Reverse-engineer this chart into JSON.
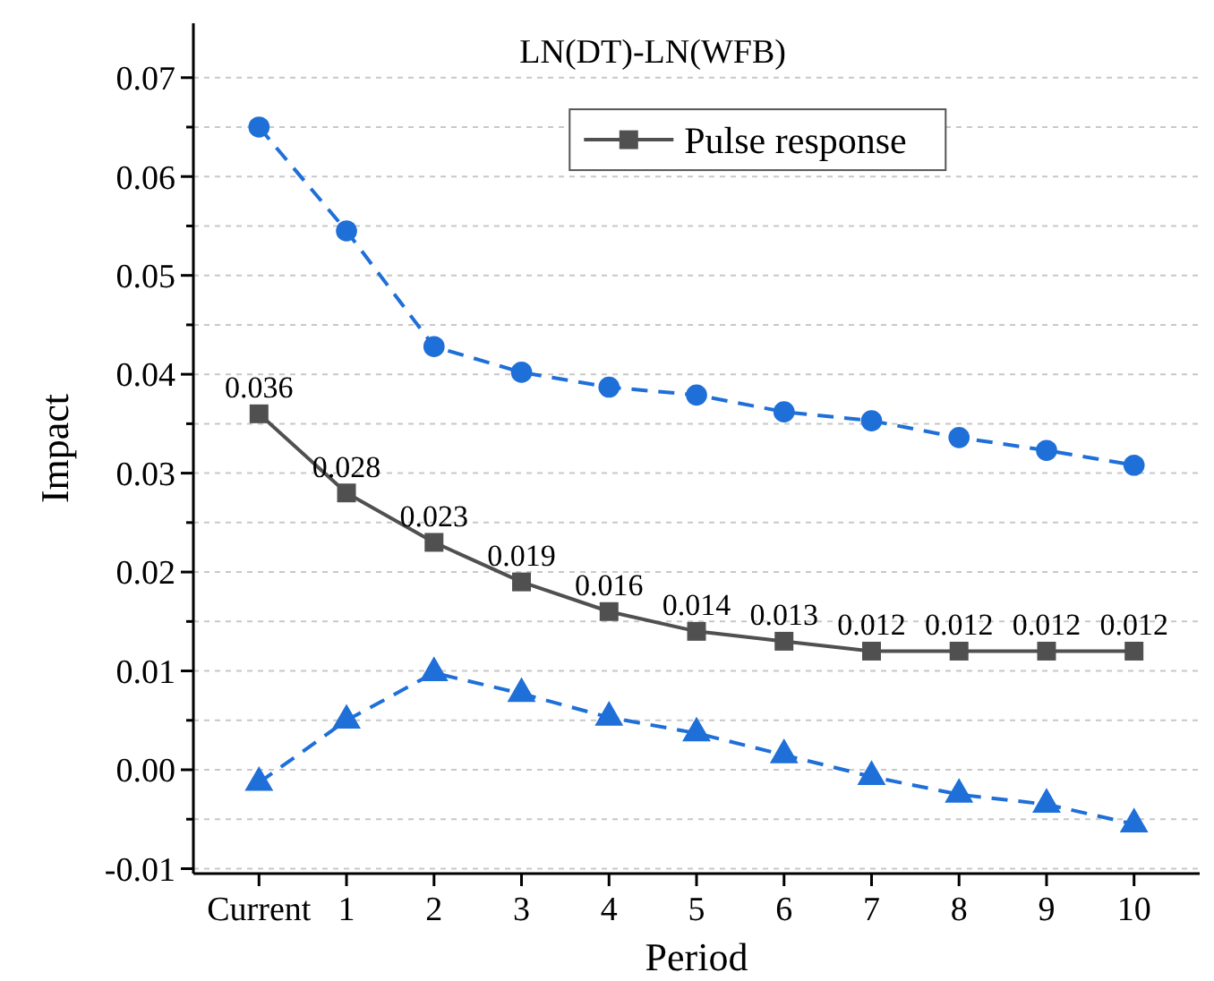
{
  "chart_data": {
    "type": "line",
    "title": "LN(DT)-LN(WFB)",
    "xlabel": "Period",
    "ylabel": "Impact",
    "categories": [
      "Current",
      "1",
      "2",
      "3",
      "4",
      "5",
      "6",
      "7",
      "8",
      "9",
      "10"
    ],
    "series": [
      {
        "color": "#1f6fd8",
        "marker": "circle",
        "line_style": "dashed",
        "values": [
          0.065,
          0.0545,
          0.0428,
          0.0402,
          0.0387,
          0.0379,
          0.0362,
          0.0353,
          0.0336,
          0.0323,
          0.0308
        ]
      },
      {
        "name": "Pulse response",
        "color": "#505050",
        "marker": "square",
        "line_style": "solid",
        "values": [
          0.036,
          0.028,
          0.023,
          0.019,
          0.016,
          0.014,
          0.013,
          0.012,
          0.012,
          0.012,
          0.012
        ],
        "value_labels": [
          "0.036",
          "0.028",
          "0.023",
          "0.019",
          "0.016",
          "0.014",
          "0.013",
          "0.012",
          "0.012",
          "0.012",
          "0.012"
        ]
      },
      {
        "color": "#1f6fd8",
        "marker": "triangle",
        "line_style": "dashed",
        "values": [
          -0.0013,
          0.005,
          0.0098,
          0.0077,
          0.0053,
          0.0037,
          0.0015,
          -0.0007,
          -0.0025,
          -0.0035,
          -0.0055
        ]
      }
    ],
    "ylim": [
      -0.0105,
      0.0755
    ],
    "yticks": [
      {
        "value": -0.01,
        "label": "-0.01"
      },
      {
        "value": -0.005,
        "label": null
      },
      {
        "value": 0,
        "label": "0.00"
      },
      {
        "value": 0.005,
        "label": null
      },
      {
        "value": 0.01,
        "label": "0.01"
      },
      {
        "value": 0.015,
        "label": null
      },
      {
        "value": 0.02,
        "label": "0.02"
      },
      {
        "value": 0.025,
        "label": null
      },
      {
        "value": 0.03,
        "label": "0.03"
      },
      {
        "value": 0.035,
        "label": null
      },
      {
        "value": 0.04,
        "label": "0.04"
      },
      {
        "value": 0.045,
        "label": null
      },
      {
        "value": 0.05,
        "label": "0.05"
      },
      {
        "value": 0.055,
        "label": null
      },
      {
        "value": 0.06,
        "label": "0.06"
      },
      {
        "value": 0.065,
        "label": null
      },
      {
        "value": 0.07,
        "label": "0.07"
      }
    ],
    "grid": "y",
    "legend": "top right"
  }
}
